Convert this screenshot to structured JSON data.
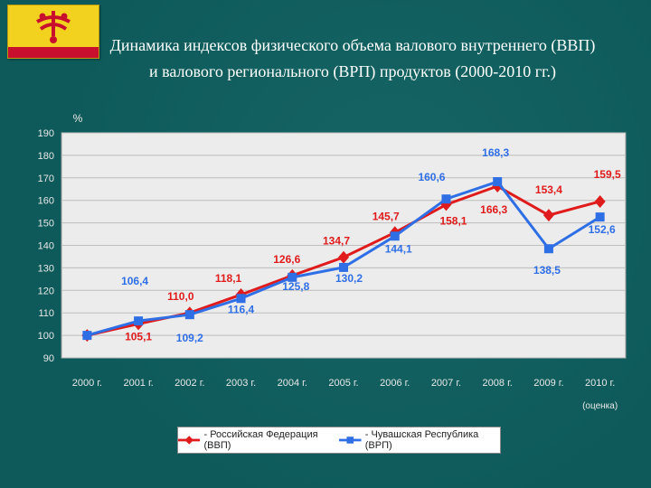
{
  "title": "Динамика индексов физического объема валового внутреннего (ВВП) и валового регионального (ВРП) продуктов (2000-2010 гг.)",
  "chart_data": {
    "type": "line",
    "categories": [
      "2000 г.",
      "2001 г.",
      "2002 г.",
      "2003 г.",
      "2004 г.",
      "2005 г.",
      "2006 г.",
      "2007 г.",
      "2008 г.",
      "2009 г.",
      "2010 г."
    ],
    "category_note": "(оценка)",
    "ylabel": "%",
    "ylim": [
      90,
      190
    ],
    "yticks": [
      90,
      100,
      110,
      120,
      130,
      140,
      150,
      160,
      170,
      180,
      190
    ],
    "grid": true,
    "legend_position": "bottom",
    "series": [
      {
        "name": "- Российская Федерация (ВВП)",
        "color": "#e01b1b",
        "marker": "diamond",
        "values": [
          100,
          105.1,
          110.0,
          118.1,
          126.6,
          134.7,
          145.7,
          158.1,
          166.3,
          153.4,
          159.5
        ],
        "labels": [
          "",
          "105,1",
          "110,0",
          "118,1",
          "126,6",
          "134,7",
          "145,7",
          "158,1",
          "166,3",
          "153,4",
          "159,5"
        ]
      },
      {
        "name": "- Чувашская Республика (ВРП)",
        "color": "#2f6fe6",
        "marker": "square",
        "values": [
          100,
          106.4,
          109.2,
          116.4,
          125.8,
          130.2,
          144.1,
          160.6,
          168.3,
          138.5,
          152.6
        ],
        "labels": [
          "",
          "106,4",
          "109,2",
          "116,4",
          "125,8",
          "130,2",
          "144,1",
          "160,6",
          "168,3",
          "138,5",
          "152,6"
        ]
      }
    ]
  }
}
